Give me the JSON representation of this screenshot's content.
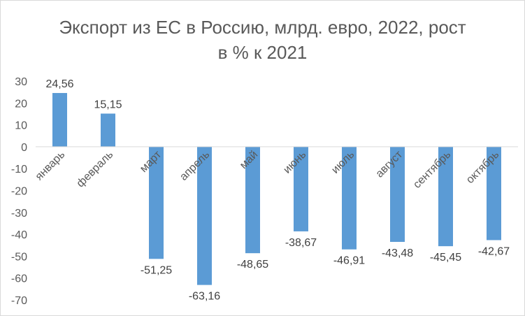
{
  "chart_data": {
    "type": "bar",
    "title_lines": [
      "Экспорт из ЕС в Россию, млрд. евро, 2022, рост",
      "в % к 2021"
    ],
    "xlabel": "",
    "ylabel": "",
    "categories": [
      "январь",
      "февраль",
      "март",
      "апрель",
      "май",
      "июнь",
      "июль",
      "август",
      "сентябрь",
      "октябрь"
    ],
    "values": [
      24.56,
      15.15,
      -51.25,
      -63.16,
      -48.65,
      -38.67,
      -46.91,
      -43.48,
      -45.45,
      -42.67
    ],
    "data_labels": [
      "24,56",
      "15,15",
      "-51,25",
      "-63,16",
      "-48,65",
      "-38,67",
      "-46,91",
      "-43,48",
      "-45,45",
      "-42,67"
    ],
    "y_ticks": [
      "30",
      "20",
      "10",
      "0",
      "-10",
      "-20",
      "-30",
      "-40",
      "-50",
      "-60",
      "-70"
    ],
    "ylim": [
      -70,
      30
    ],
    "grid": false,
    "legend": "none",
    "bar_color": "#5b9bd5",
    "axis_color": "#d9d9d9"
  }
}
